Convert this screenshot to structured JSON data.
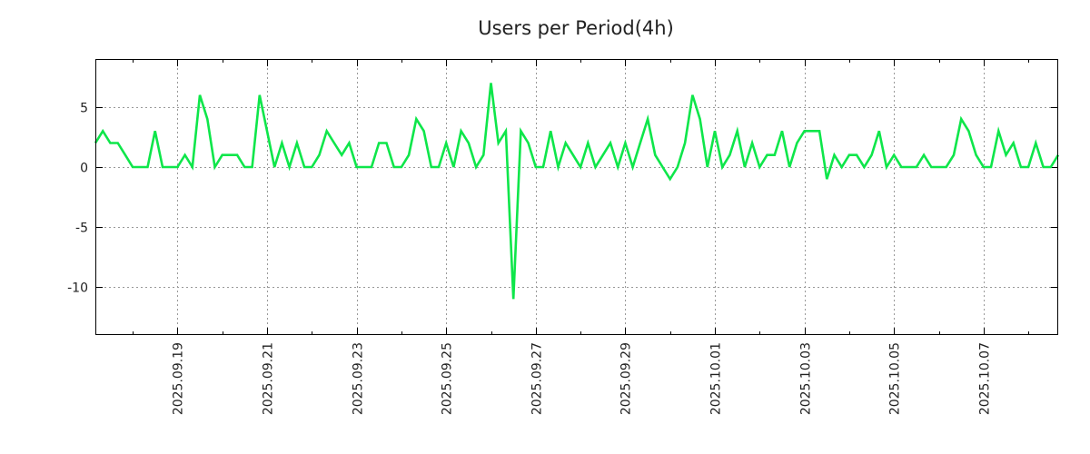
{
  "chart_data": {
    "type": "line",
    "title": "Users per Period(4h)",
    "xlabel": "",
    "ylabel": "",
    "start": "2025-09-17T04:00:00",
    "interval_hours": 4,
    "ylim": [
      -14,
      9
    ],
    "yticks": [
      5,
      0,
      -5,
      -10
    ],
    "ytick_labels": [
      "5",
      "0",
      "-5",
      "-10"
    ],
    "xticks": [
      "2025-09-19T00:00:00",
      "2025-09-21T00:00:00",
      "2025-09-23T00:00:00",
      "2025-09-25T00:00:00",
      "2025-09-27T00:00:00",
      "2025-09-29T00:00:00",
      "2025-10-01T00:00:00",
      "2025-10-03T00:00:00",
      "2025-10-05T00:00:00",
      "2025-10-07T00:00:00"
    ],
    "xtick_labels": [
      "2025.09.19",
      "2025.09.21",
      "2025.09.23",
      "2025.09.25",
      "2025.09.27",
      "2025.09.29",
      "2025.10.01",
      "2025.10.03",
      "2025.10.05",
      "2025.10.07"
    ],
    "grid": true,
    "series": [
      {
        "name": "users",
        "color": "#0ee64a",
        "values": [
          2,
          3,
          2,
          2,
          1,
          0,
          0,
          0,
          3,
          0,
          0,
          0,
          1,
          0,
          6,
          4,
          0,
          1,
          1,
          1,
          0,
          0,
          6,
          3,
          0,
          2,
          0,
          2,
          0,
          0,
          1,
          3,
          2,
          1,
          2,
          0,
          0,
          0,
          2,
          2,
          0,
          0,
          1,
          4,
          3,
          0,
          0,
          2,
          0,
          3,
          2,
          0,
          1,
          7,
          2,
          3,
          -11,
          3,
          2,
          0,
          0,
          3,
          0,
          2,
          1,
          0,
          2,
          0,
          1,
          2,
          0,
          2,
          0,
          2,
          4,
          1,
          0,
          -1,
          0,
          2,
          6,
          4,
          0,
          3,
          0,
          1,
          3,
          0,
          2,
          0,
          1,
          1,
          3,
          0,
          2,
          3,
          3,
          3,
          -1,
          1,
          0,
          1,
          1,
          0,
          1,
          3,
          0,
          1,
          0,
          0,
          0,
          1,
          0,
          0,
          0,
          1,
          4,
          3,
          1,
          0,
          0,
          3,
          1,
          2,
          0,
          0,
          2,
          0,
          0,
          1
        ]
      }
    ]
  }
}
